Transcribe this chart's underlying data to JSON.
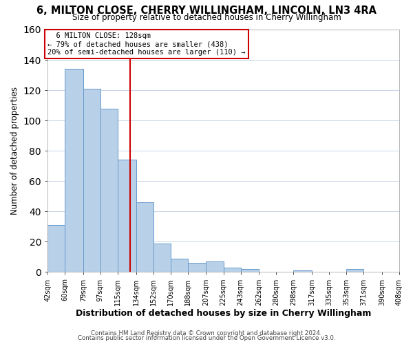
{
  "title": "6, MILTON CLOSE, CHERRY WILLINGHAM, LINCOLN, LN3 4RA",
  "subtitle": "Size of property relative to detached houses in Cherry Willingham",
  "xlabel": "Distribution of detached houses by size in Cherry Willingham",
  "ylabel": "Number of detached properties",
  "bar_edges": [
    42,
    60,
    79,
    97,
    115,
    134,
    152,
    170,
    188,
    207,
    225,
    243,
    262,
    280,
    298,
    317,
    335,
    353,
    371,
    390,
    408
  ],
  "bar_heights": [
    31,
    134,
    121,
    108,
    74,
    46,
    19,
    9,
    6,
    7,
    3,
    2,
    0,
    0,
    1,
    0,
    0,
    2,
    0,
    0
  ],
  "bar_color": "#b8d0e8",
  "bar_edge_color": "#6699cc",
  "vline_x": 128,
  "vline_color": "#cc0000",
  "ylim": [
    0,
    160
  ],
  "yticks": [
    0,
    20,
    40,
    60,
    80,
    100,
    120,
    140,
    160
  ],
  "tick_labels": [
    "42sqm",
    "60sqm",
    "79sqm",
    "97sqm",
    "115sqm",
    "134sqm",
    "152sqm",
    "170sqm",
    "188sqm",
    "207sqm",
    "225sqm",
    "243sqm",
    "262sqm",
    "280sqm",
    "298sqm",
    "317sqm",
    "335sqm",
    "353sqm",
    "371sqm",
    "390sqm",
    "408sqm"
  ],
  "annotation_title": "6 MILTON CLOSE: 128sqm",
  "annotation_line1": "← 79% of detached houses are smaller (438)",
  "annotation_line2": "20% of semi-detached houses are larger (110) →",
  "annotation_box_color": "#ffffff",
  "annotation_box_edge": "#cc0000",
  "footer1": "Contains HM Land Registry data © Crown copyright and database right 2024.",
  "footer2": "Contains public sector information licensed under the Open Government Licence v3.0.",
  "background_color": "#ffffff",
  "grid_color": "#c8d4e8"
}
